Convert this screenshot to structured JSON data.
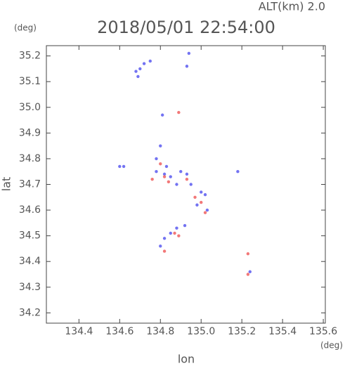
{
  "chart_data": {
    "type": "scatter",
    "title": "2018/05/01 22:54:00",
    "subtitle": "ALT(km) 2.0",
    "y_unit": "(deg)",
    "x_unit": "(deg)",
    "ylabel": "lat",
    "xlabel": "lon",
    "xlim": [
      134.24,
      135.61
    ],
    "ylim": [
      34.16,
      35.24
    ],
    "xticks": [
      134.4,
      134.6,
      134.8,
      {
        "value": 135,
        "label": "135.0"
      },
      135.2,
      135.4,
      135.6
    ],
    "yticks": [
      34.2,
      34.3,
      34.4,
      34.5,
      34.6,
      34.7,
      34.8,
      34.9,
      {
        "value": 35,
        "label": "35.0"
      },
      35.1,
      35.2
    ],
    "series": [
      {
        "color": "#5a5af0",
        "x": [
          134.68,
          134.7,
          134.72,
          134.69,
          134.75,
          134.93,
          134.94,
          134.6,
          134.62,
          134.8,
          134.78,
          134.82,
          134.85,
          134.9,
          134.93,
          134.88,
          134.95,
          135.0,
          135.02,
          134.98,
          135.03,
          135.18,
          134.85,
          134.88,
          134.92,
          134.82,
          134.8,
          135.24,
          134.81,
          134.78,
          134.83
        ],
        "y": [
          35.14,
          35.15,
          35.17,
          35.12,
          35.18,
          35.16,
          35.21,
          34.77,
          34.77,
          34.85,
          34.8,
          34.74,
          34.73,
          34.75,
          34.74,
          34.7,
          34.7,
          34.67,
          34.66,
          34.62,
          34.6,
          34.75,
          34.51,
          34.53,
          34.54,
          34.49,
          34.46,
          34.36,
          34.97,
          34.75,
          34.77
        ]
      },
      {
        "color": "#f06060",
        "x": [
          134.89,
          134.82,
          134.84,
          134.93,
          134.97,
          135.0,
          135.02,
          134.87,
          134.82,
          135.23,
          135.23,
          134.8,
          134.76,
          134.89
        ],
        "y": [
          34.98,
          34.73,
          34.71,
          34.72,
          34.65,
          34.63,
          34.59,
          34.51,
          34.44,
          34.43,
          34.35,
          34.78,
          34.72,
          34.5
        ]
      }
    ]
  }
}
